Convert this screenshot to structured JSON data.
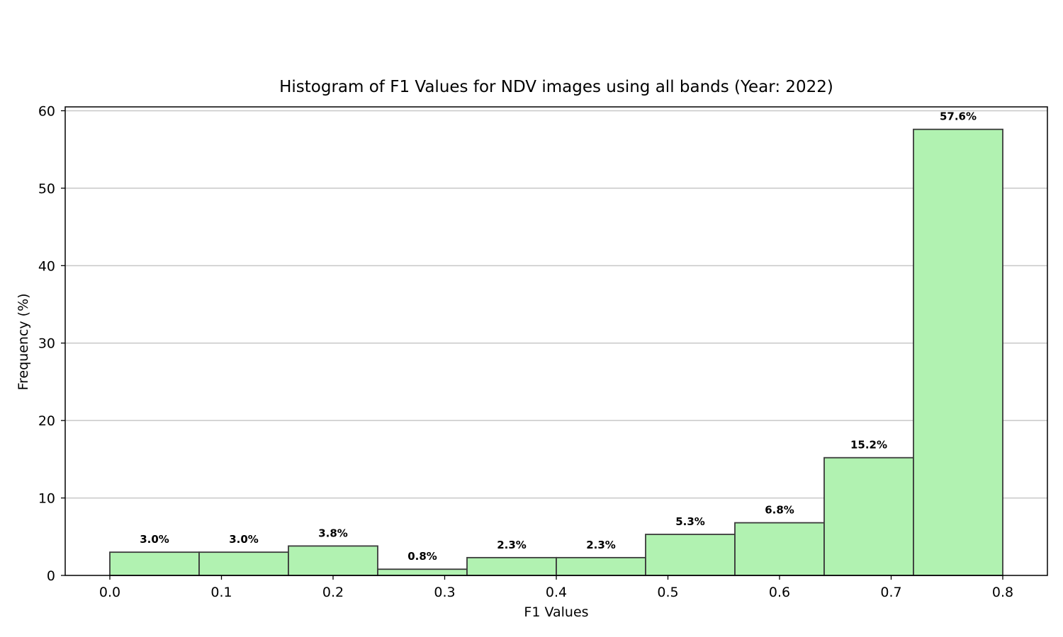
{
  "chart_data": {
    "type": "bar",
    "title": "Histogram of F1 Values for NDV images using all bands (Year: 2022)",
    "xlabel": "F1 Values",
    "ylabel": "Frequency (%)",
    "bin_edges": [
      0.0,
      0.08,
      0.16,
      0.24,
      0.32,
      0.4,
      0.48,
      0.56,
      0.64,
      0.72,
      0.8
    ],
    "values": [
      3.0,
      3.0,
      3.8,
      0.8,
      2.3,
      2.3,
      5.3,
      6.8,
      15.2,
      57.6
    ],
    "bar_labels": [
      "3.0%",
      "3.0%",
      "3.8%",
      "0.8%",
      "2.3%",
      "2.3%",
      "5.3%",
      "6.8%",
      "15.2%",
      "57.6%"
    ],
    "xticks": [
      0.0,
      0.1,
      0.2,
      0.3,
      0.4,
      0.5,
      0.6,
      0.7,
      0.8
    ],
    "xtick_labels": [
      "0.0",
      "0.1",
      "0.2",
      "0.3",
      "0.4",
      "0.5",
      "0.6",
      "0.7",
      "0.8"
    ],
    "yticks": [
      0,
      10,
      20,
      30,
      40,
      50,
      60
    ],
    "ytick_labels": [
      "0",
      "10",
      "20",
      "30",
      "40",
      "50",
      "60"
    ],
    "xlim": [
      -0.04,
      0.84
    ],
    "ylim": [
      0,
      60.5
    ],
    "grid": "y",
    "bar_color": "#b1f2b1",
    "edge_color": "#3a3a3a"
  }
}
